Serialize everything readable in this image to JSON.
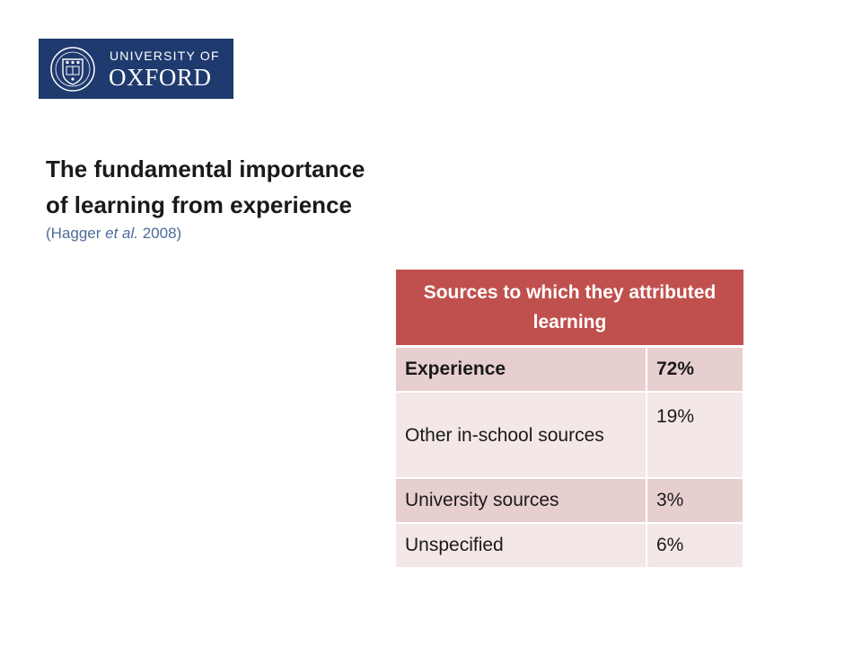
{
  "logo": {
    "line1": "UNIVERSITY OF",
    "line2": "OXFORD",
    "crest_icon": "oxford-crest-icon",
    "bg_color": "#1f3a6e"
  },
  "title": {
    "line1": "The fundamental importance",
    "line2": "of learning from experience"
  },
  "citation": {
    "prefix": "(Hagger ",
    "italic": "et al.",
    "suffix": " 2008)"
  },
  "table": {
    "header": "Sources to which they attributed learning",
    "header_color": "#c0504d",
    "rows": [
      {
        "source": "Experience",
        "percent": "72%"
      },
      {
        "source": "Other in-school sources",
        "percent": "19%"
      },
      {
        "source": "University sources",
        "percent": "3%"
      },
      {
        "source": "Unspecified",
        "percent": "6%"
      }
    ]
  }
}
